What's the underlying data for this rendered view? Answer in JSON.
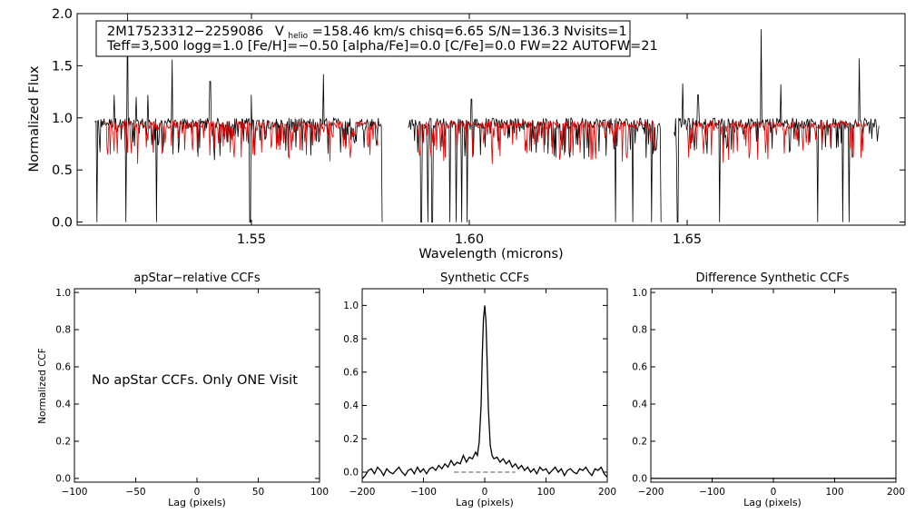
{
  "header": {
    "line1_id": "2M17523312−2259086",
    "line1_v": "V",
    "line1_vsub": "helio",
    "line1_rest": "=158.46 km/s  chisq=6.65  S/N=136.3  Nvisits=1",
    "line2": "Teff=3,500 logg=1.0 [Fe/H]=−0.50 [alpha/Fe]=0.0 [C/Fe]=0.0 FW=22 AUTOFW=21"
  },
  "colors": {
    "observed": "#000000",
    "model": "#e00000",
    "zero_line": "#555555"
  },
  "chart_data": [
    {
      "type": "line",
      "id": "spectrum",
      "title": "",
      "xlabel": "Wavelength (microns)",
      "ylabel": "Normalized Flux",
      "xlim": [
        1.51,
        1.7
      ],
      "ylim": [
        -0.03,
        2.0
      ],
      "xticks": [
        1.55,
        1.6,
        1.65
      ],
      "xtick_labels": [
        "1.55",
        "1.60",
        "1.65"
      ],
      "yticks": [
        0.0,
        0.5,
        1.0,
        1.5,
        2.0
      ],
      "ytick_labels": [
        "0.0",
        "0.5",
        "1.0",
        "1.5",
        "2.0"
      ],
      "detector_ranges_microns": [
        [
          1.514,
          1.58
        ],
        [
          1.586,
          1.644
        ],
        [
          1.647,
          1.694
        ]
      ],
      "model_ranges_microns": [
        [
          1.5165,
          1.579
        ],
        [
          1.588,
          1.6425
        ],
        [
          1.65,
          1.691
        ]
      ],
      "continuum_level": 0.95,
      "emission_spikes": [
        [
          1.5185,
          1.22
        ],
        [
          1.5215,
          2.0
        ],
        [
          1.5235,
          1.2
        ],
        [
          1.5262,
          1.22
        ],
        [
          1.5318,
          1.56
        ],
        [
          1.5405,
          1.35
        ],
        [
          1.55,
          1.22
        ],
        [
          1.5665,
          1.42
        ],
        [
          1.6005,
          1.18
        ],
        [
          1.649,
          1.33
        ],
        [
          1.6525,
          1.22
        ],
        [
          1.667,
          1.85
        ],
        [
          1.6715,
          1.32
        ],
        [
          1.6895,
          1.57
        ]
      ],
      "absorption_lines": [
        [
          1.5145,
          0.0
        ],
        [
          1.5212,
          0.0
        ],
        [
          1.5282,
          0.0
        ],
        [
          1.5497,
          0.0
        ],
        [
          1.58,
          0.0
        ],
        [
          1.589,
          0.0
        ],
        [
          1.5905,
          0.0
        ],
        [
          1.5915,
          0.0
        ],
        [
          1.5955,
          0.0
        ],
        [
          1.597,
          0.0
        ],
        [
          1.5982,
          0.0
        ],
        [
          1.5995,
          0.0
        ],
        [
          1.6335,
          0.0
        ],
        [
          1.6375,
          0.0
        ],
        [
          1.6418,
          0.0
        ],
        [
          1.644,
          0.0
        ],
        [
          1.6478,
          0.0
        ],
        [
          1.6575,
          0.0
        ],
        [
          1.68,
          0.0
        ],
        [
          1.6857,
          0.0
        ],
        [
          1.6872,
          0.0
        ]
      ]
    },
    {
      "type": "line",
      "id": "ccf_apstar",
      "title": "apStar−relative CCFs",
      "xlabel": "Lag (pixels)",
      "ylabel": "Normalized CCF",
      "xlim": [
        -100,
        100
      ],
      "ylim": [
        -0.02,
        1.02
      ],
      "xticks": [
        -100,
        -50,
        0,
        50,
        100
      ],
      "xtick_labels": [
        "−100",
        "−50",
        "0",
        "50",
        "100"
      ],
      "yticks": [
        0.0,
        0.2,
        0.4,
        0.6,
        0.8,
        1.0
      ],
      "ytick_labels": [
        "0.0",
        "0.2",
        "0.4",
        "0.6",
        "0.8",
        "1.0"
      ],
      "annotation": "No apStar CCFs.  Only ONE Visit"
    },
    {
      "type": "line",
      "id": "ccf_synthetic",
      "title": "Synthetic CCFs",
      "xlabel": "Lag (pixels)",
      "ylabel": "",
      "xlim": [
        -200,
        200
      ],
      "ylim": [
        -0.06,
        1.1
      ],
      "xticks": [
        -200,
        -100,
        0,
        100,
        200
      ],
      "xtick_labels": [
        "−200",
        "−100",
        "0",
        "100",
        "200"
      ],
      "yticks": [
        0.0,
        0.2,
        0.4,
        0.6,
        0.8,
        1.0
      ],
      "ytick_labels": [
        "0.0",
        "0.2",
        "0.4",
        "0.6",
        "0.8",
        "1.0"
      ],
      "zero_line_range": [
        -50,
        50
      ],
      "series": [
        {
          "name": "ccf",
          "x": [
            -200,
            -195,
            -190,
            -185,
            -180,
            -175,
            -170,
            -165,
            -160,
            -155,
            -150,
            -145,
            -140,
            -135,
            -130,
            -125,
            -120,
            -115,
            -110,
            -105,
            -100,
            -95,
            -90,
            -85,
            -80,
            -75,
            -70,
            -65,
            -60,
            -55,
            -50,
            -45,
            -40,
            -35,
            -30,
            -25,
            -20,
            -15,
            -12,
            -9,
            -6,
            -4,
            -2,
            0,
            2,
            4,
            6,
            9,
            12,
            15,
            20,
            25,
            30,
            35,
            40,
            45,
            50,
            55,
            60,
            65,
            70,
            75,
            80,
            85,
            90,
            95,
            100,
            105,
            110,
            115,
            120,
            125,
            130,
            135,
            140,
            145,
            150,
            155,
            160,
            165,
            170,
            175,
            180,
            185,
            190,
            195,
            200
          ],
          "y": [
            -0.04,
            -0.02,
            0.01,
            0.02,
            -0.01,
            0.03,
            0.01,
            -0.02,
            0.02,
            0.0,
            -0.01,
            0.01,
            0.03,
            0.0,
            -0.02,
            0.01,
            0.02,
            -0.01,
            0.03,
            0.0,
            0.02,
            -0.01,
            0.02,
            0.03,
            0.01,
            0.04,
            0.02,
            0.05,
            0.03,
            0.07,
            0.04,
            0.06,
            0.05,
            0.1,
            0.06,
            0.09,
            0.08,
            0.12,
            0.1,
            0.18,
            0.4,
            0.7,
            0.92,
            1.0,
            0.9,
            0.65,
            0.38,
            0.16,
            0.1,
            0.08,
            0.09,
            0.06,
            0.08,
            0.05,
            0.07,
            0.03,
            0.05,
            0.02,
            0.04,
            0.01,
            0.03,
            0.0,
            0.02,
            -0.01,
            0.03,
            0.01,
            0.02,
            -0.01,
            0.01,
            0.03,
            0.0,
            0.02,
            -0.02,
            0.01,
            0.02,
            0.0,
            -0.01,
            0.02,
            0.01,
            0.03,
            0.0,
            -0.02,
            0.02,
            0.01,
            0.03,
            -0.01,
            -0.03
          ]
        }
      ]
    },
    {
      "type": "line",
      "id": "ccf_difference",
      "title": "Difference Synthetic CCFs",
      "xlabel": "Lag (pixels)",
      "ylabel": "",
      "xlim": [
        -200,
        200
      ],
      "ylim": [
        -0.02,
        1.02
      ],
      "xticks": [
        -200,
        -100,
        0,
        100,
        200
      ],
      "xtick_labels": [
        "−200",
        "−100",
        "0",
        "100",
        "200"
      ],
      "yticks": [
        0.0,
        0.2,
        0.4,
        0.6,
        0.8,
        1.0
      ],
      "ytick_labels": [
        "0.0",
        "0.2",
        "0.4",
        "0.6",
        "0.8",
        "1.0"
      ],
      "series": [
        {
          "name": "difference",
          "x": [
            -200,
            200
          ],
          "y": [
            0.0,
            0.0
          ]
        }
      ]
    }
  ]
}
